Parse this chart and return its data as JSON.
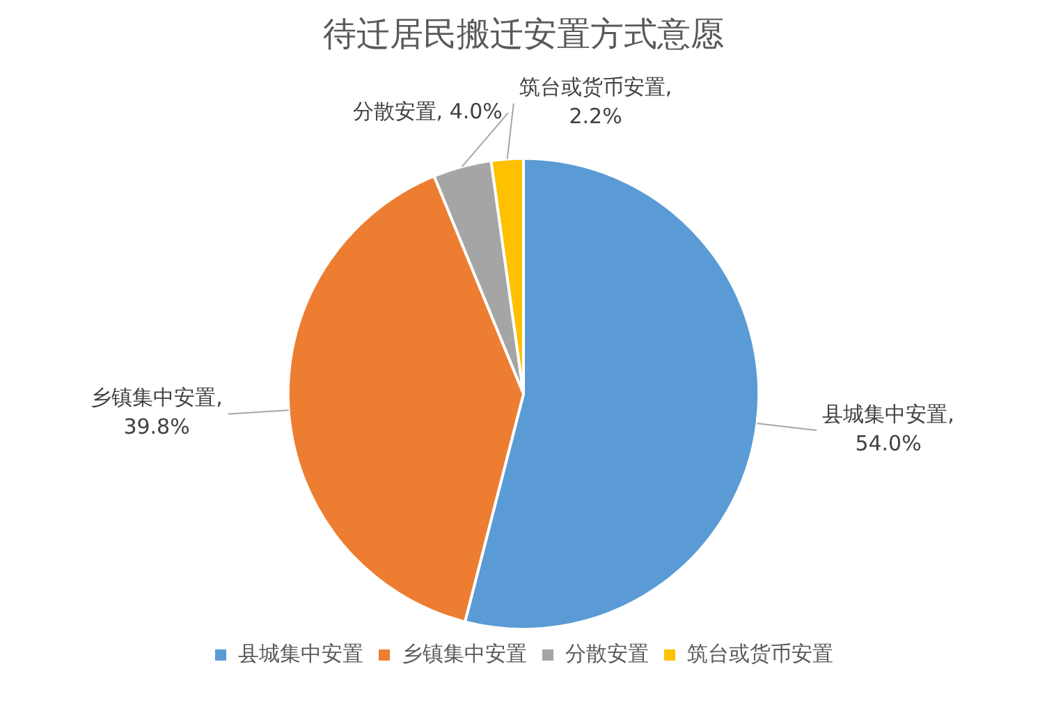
{
  "chart_data": {
    "type": "pie",
    "title": "待迁居民搬迁安置方式意愿",
    "categories": [
      "县城集中安置",
      "乡镇集中安置",
      "分散安置",
      "筑台或货币安置"
    ],
    "values": [
      54.0,
      39.8,
      4.0,
      2.2
    ],
    "colors": [
      "#5b9bd5",
      "#ed7d31",
      "#a5a5a5",
      "#ffc000"
    ],
    "value_labels": [
      "县城集中安置, 54.0%",
      "乡镇集中安置, 39.8%",
      "分散安置, 4.0%",
      "筑台或货币安置, 2.2%"
    ],
    "legend": "bottom"
  }
}
